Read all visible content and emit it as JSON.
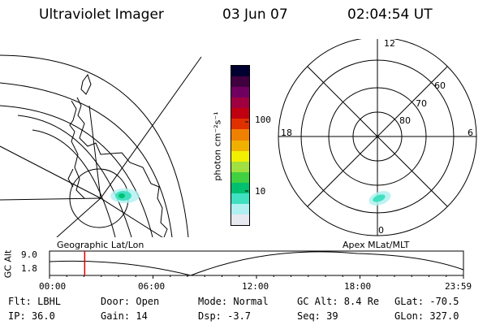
{
  "header": {
    "title": "Ultraviolet Imager",
    "date": "03 Jun 07",
    "time": "02:04:54 UT"
  },
  "left_map": {
    "caption": "Geographic Lat/Lon"
  },
  "colorbar": {
    "unit_label": "photon cm⁻²s⁻¹",
    "ticks": [
      "100",
      "10"
    ],
    "colors": [
      "#e8e8f0",
      "#b0f0f0",
      "#40e0c0",
      "#00c070",
      "#40d040",
      "#a0e040",
      "#f0f000",
      "#f0b000",
      "#f08000",
      "#e03000",
      "#c00010",
      "#a00040",
      "#700060",
      "#400040",
      "#000030"
    ]
  },
  "right_map": {
    "caption": "Apex  MLat/MLT",
    "mlt_labels": {
      "top": "12",
      "left": "18",
      "right": "6",
      "bottom": "0"
    },
    "lat_labels": [
      "60",
      "70",
      "80"
    ]
  },
  "timeline": {
    "ylabel": "GC Alt",
    "yticks": [
      "9.0",
      "1.8"
    ],
    "xticks": [
      "00:00",
      "06:00",
      "12:00",
      "18:00",
      "23:59"
    ],
    "current_fraction": 0.085
  },
  "info": {
    "row1": {
      "flt": "Flt: LBHL",
      "door": "Door: Open",
      "mode": "Mode: Normal",
      "gcalt": "GC Alt: 8.4 Re",
      "glat": "GLat: -70.5"
    },
    "row2": {
      "ip": "IP: 36.0",
      "gain": "Gain: 14",
      "dsp": "Dsp:   -3.7",
      "seq": "Seq: 39",
      "glon": "GLon: 327.0"
    }
  },
  "colors": {
    "accent_marker": "#e00000",
    "ink": "#000000",
    "aurora": "#30d0b0"
  }
}
